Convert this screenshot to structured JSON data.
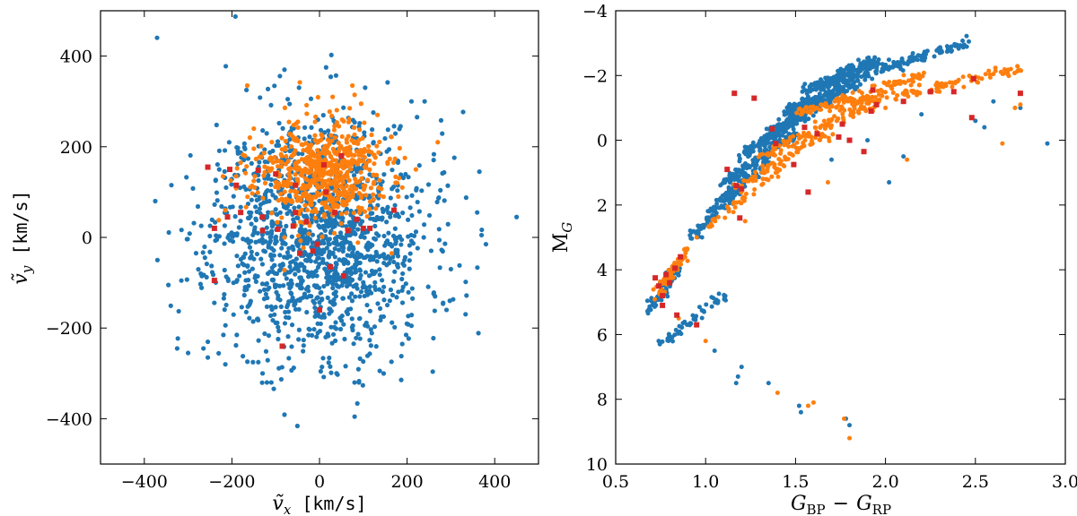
{
  "chart_data": [
    {
      "type": "scatter",
      "title": "",
      "xlabel": "ṽx [km/s]",
      "ylabel": "ṽy [km/s]",
      "xlabel_parts": {
        "symbol": "ṽ",
        "sub": "x",
        "unit": "[km/s]"
      },
      "ylabel_parts": {
        "symbol": "ṽ",
        "sub": "y",
        "unit": "[km/s]"
      },
      "xlim": [
        -500,
        500
      ],
      "ylim": [
        -500,
        500
      ],
      "xticks": [
        -400,
        -200,
        0,
        200,
        400
      ],
      "yticks": [
        -400,
        -200,
        0,
        200,
        400
      ],
      "xtick_labels": [
        "−400",
        "−200",
        "0",
        "200",
        "400"
      ],
      "ytick_labels": [
        "−400",
        "−200",
        "0",
        "200",
        "400"
      ],
      "grid": false,
      "series": [
        {
          "name": "blue",
          "color": "#1f77b4",
          "marker": "circle",
          "cloud": {
            "center": [
              0,
              0
            ],
            "spread": [
              120,
              130
            ],
            "count": 1500,
            "seed": 11
          },
          "points": [
            [
              450,
              45
            ],
            [
              380,
              -15
            ],
            [
              365,
              145
            ],
            [
              360,
              55
            ],
            [
              -375,
              80
            ],
            [
              -370,
              -50
            ],
            [
              -345,
              -105
            ],
            [
              -325,
              -245
            ],
            [
              -300,
              -255
            ],
            [
              370,
              5
            ],
            [
              290,
              -160
            ],
            [
              -215,
              -280
            ],
            [
              210,
              300
            ],
            [
              -120,
              -320
            ],
            [
              -110,
              -320
            ],
            [
              90,
              -320
            ],
            [
              80,
              -320
            ],
            [
              -130,
              -300
            ],
            [
              15,
              375
            ],
            [
              -80,
              370
            ],
            [
              240,
              300
            ],
            [
              185,
              245
            ],
            [
              -235,
              248
            ],
            [
              -265,
              -245
            ],
            [
              -255,
              -265
            ],
            [
              300,
              -70
            ]
          ]
        },
        {
          "name": "orange",
          "color": "#ff7f0e",
          "marker": "circle",
          "cloud": {
            "center": [
              0,
              140
            ],
            "spread": [
              75,
              55
            ],
            "count": 600,
            "seed": 23
          },
          "points": [
            [
              -45,
              342
            ],
            [
              75,
              335
            ],
            [
              30,
              310
            ],
            [
              -165,
              335
            ],
            [
              -230,
              38
            ],
            [
              -80,
              -72
            ],
            [
              165,
              -35
            ],
            [
              -10,
              255
            ],
            [
              95,
              295
            ],
            [
              270,
              210
            ],
            [
              220,
              150
            ],
            [
              180,
              90
            ],
            [
              -170,
              180
            ],
            [
              -150,
              240
            ],
            [
              -215,
              60
            ]
          ]
        },
        {
          "name": "red",
          "color": "#d62728",
          "marker": "square",
          "points": [
            [
              -255,
              155
            ],
            [
              -205,
              150
            ],
            [
              -140,
              148
            ],
            [
              -55,
              115
            ],
            [
              15,
              100
            ],
            [
              50,
              180
            ],
            [
              -190,
              115
            ],
            [
              -180,
              55
            ],
            [
              -210,
              45
            ],
            [
              -240,
              20
            ],
            [
              -130,
              45
            ],
            [
              -55,
              55
            ],
            [
              35,
              55
            ],
            [
              -30,
              35
            ],
            [
              -60,
              25
            ],
            [
              -95,
              18
            ],
            [
              -130,
              15
            ],
            [
              85,
              40
            ],
            [
              115,
              20
            ],
            [
              170,
              60
            ],
            [
              -240,
              -95
            ],
            [
              -5,
              -15
            ],
            [
              -15,
              -30
            ],
            [
              25,
              -65
            ],
            [
              55,
              -85
            ],
            [
              100,
              20
            ],
            [
              0,
              -160
            ],
            [
              -85,
              -240
            ],
            [
              -45,
              -35
            ],
            [
              10,
              160
            ],
            [
              65,
              15
            ],
            [
              -100,
              140
            ]
          ]
        }
      ]
    },
    {
      "type": "scatter",
      "title": "",
      "xlabel": "GBP − GRP",
      "ylabel": "MG",
      "xlabel_parts": {
        "g1": "G",
        "s1": "BP",
        "op": "−",
        "g2": "G",
        "s2": "RP"
      },
      "ylabel_parts": {
        "main": "M",
        "sub": "G"
      },
      "xlim": [
        0.5,
        3.0
      ],
      "ylim": [
        10,
        -4
      ],
      "xticks": [
        0.5,
        1.0,
        1.5,
        2.0,
        2.5,
        3.0
      ],
      "yticks": [
        -4,
        -2,
        0,
        2,
        4,
        6,
        8,
        10
      ],
      "xtick_labels": [
        "0.5",
        "1.0",
        "1.5",
        "2.0",
        "2.5",
        "3.0"
      ],
      "ytick_labels": [
        "−4",
        "−2",
        "0",
        "2",
        "4",
        "6",
        "8",
        "10"
      ],
      "grid": false,
      "series": [
        {
          "name": "blue",
          "color": "#1f77b4",
          "marker": "circle",
          "bands": [
            {
              "x": [
                1.62,
                2.45
              ],
              "y": [
                -3.0,
                -1.6
              ],
              "n": 170
            },
            {
              "x": [
                1.55,
                1.95
              ],
              "y": [
                -2.5,
                -1.5
              ],
              "n": 160
            },
            {
              "x": [
                1.45,
                1.85
              ],
              "y": [
                -1.8,
                -0.9
              ],
              "n": 140
            },
            {
              "x": [
                1.35,
                1.7
              ],
              "y": [
                -1.3,
                -0.2
              ],
              "n": 120
            },
            {
              "x": [
                1.2,
                1.55
              ],
              "y": [
                -0.8,
                0.5
              ],
              "n": 120
            },
            {
              "x": [
                1.1,
                1.5
              ],
              "y": [
                -0.2,
                1.3
              ],
              "n": 110
            },
            {
              "x": [
                1.02,
                1.35
              ],
              "y": [
                0.6,
                2.2
              ],
              "n": 90
            },
            {
              "x": [
                0.92,
                1.2
              ],
              "y": [
                1.5,
                3.0
              ],
              "n": 70
            },
            {
              "x": [
                0.68,
                0.85
              ],
              "y": [
                3.9,
                5.3
              ],
              "n": 80
            },
            {
              "x": [
                0.75,
                1.1
              ],
              "y": [
                4.8,
                6.3
              ],
              "n": 50
            }
          ],
          "points": [
            [
              2.9,
              0.1
            ],
            [
              2.55,
              -0.4
            ],
            [
              2.75,
              -1.0
            ],
            [
              1.17,
              7.5
            ],
            [
              1.18,
              7.3
            ],
            [
              1.52,
              8.2
            ],
            [
              1.53,
              8.4
            ],
            [
              1.78,
              8.6
            ],
            [
              1.8,
              8.8
            ],
            [
              2.1,
              0.5
            ],
            [
              2.02,
              1.3
            ],
            [
              1.7,
              0.6
            ],
            [
              1.2,
              7.0
            ],
            [
              1.35,
              7.5
            ],
            [
              0.98,
              3.0
            ],
            [
              1.05,
              6.5
            ],
            [
              1.9,
              0.0
            ],
            [
              2.2,
              -0.8
            ],
            [
              2.5,
              -0.6
            ],
            [
              2.6,
              -1.2
            ]
          ]
        },
        {
          "name": "orange",
          "color": "#ff7f0e",
          "marker": "circle",
          "bands": [
            {
              "x": [
                1.7,
                2.75
              ],
              "y": [
                -2.2,
                -1.0
              ],
              "n": 110
            },
            {
              "x": [
                1.5,
                2.2
              ],
              "y": [
                -2.0,
                -0.8
              ],
              "n": 100
            },
            {
              "x": [
                1.3,
                1.95
              ],
              "y": [
                -1.2,
                0.5
              ],
              "n": 100
            },
            {
              "x": [
                1.15,
                1.7
              ],
              "y": [
                -0.3,
                1.5
              ],
              "n": 70
            },
            {
              "x": [
                1.0,
                1.4
              ],
              "y": [
                1.0,
                2.8
              ],
              "n": 40
            },
            {
              "x": [
                0.72,
                0.9
              ],
              "y": [
                3.4,
                4.8
              ],
              "n": 60
            }
          ],
          "points": [
            [
              2.72,
              -1.0
            ],
            [
              2.75,
              -1.1
            ],
            [
              1.68,
              1.3
            ],
            [
              1.8,
              9.2
            ],
            [
              1.57,
              8.2
            ],
            [
              1.6,
              8.1
            ],
            [
              1.4,
              7.8
            ],
            [
              1.77,
              8.6
            ],
            [
              2.65,
              0.1
            ],
            [
              2.12,
              0.6
            ],
            [
              1.22,
              2.5
            ],
            [
              0.95,
              3.0
            ],
            [
              0.85,
              5.5
            ],
            [
              1.0,
              6.2
            ],
            [
              2.0,
              -1.0
            ],
            [
              2.3,
              -1.5
            ]
          ]
        },
        {
          "name": "red",
          "color": "#d62728",
          "marker": "square",
          "points": [
            [
              2.75,
              -1.45
            ],
            [
              2.49,
              -1.9
            ],
            [
              2.48,
              -0.7
            ],
            [
              2.38,
              -1.5
            ],
            [
              2.1,
              -1.2
            ],
            [
              1.93,
              -1.55
            ],
            [
              1.92,
              -0.9
            ],
            [
              1.76,
              -0.5
            ],
            [
              1.74,
              -0.1
            ],
            [
              1.8,
              0.0
            ],
            [
              1.88,
              0.35
            ],
            [
              1.57,
              1.6
            ],
            [
              1.49,
              0.75
            ],
            [
              1.37,
              -0.35
            ],
            [
              1.27,
              -1.3
            ],
            [
              1.16,
              -1.45
            ],
            [
              1.39,
              0.1
            ],
            [
              1.2,
              1.5
            ],
            [
              1.17,
              1.4
            ],
            [
              1.19,
              2.4
            ],
            [
              1.12,
              0.9
            ],
            [
              0.86,
              3.6
            ],
            [
              0.83,
              3.95
            ],
            [
              0.78,
              4.15
            ],
            [
              0.72,
              4.25
            ],
            [
              0.74,
              4.5
            ],
            [
              0.8,
              4.4
            ],
            [
              0.76,
              4.8
            ],
            [
              0.84,
              5.4
            ],
            [
              0.76,
              5.1
            ],
            [
              0.95,
              5.7
            ],
            [
              1.62,
              -0.2
            ],
            [
              1.55,
              -0.4
            ],
            [
              2.25,
              -1.5
            ],
            [
              1.95,
              -1.1
            ]
          ]
        }
      ]
    }
  ]
}
